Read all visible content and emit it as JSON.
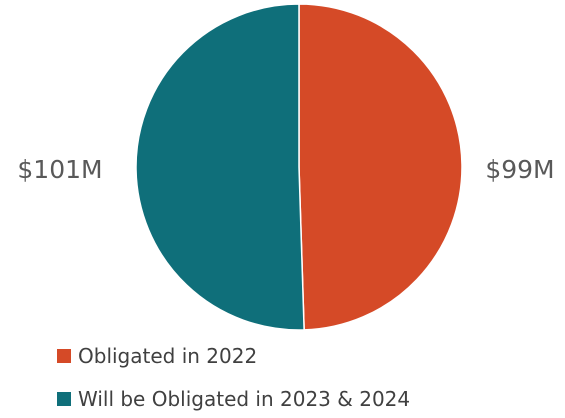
{
  "chart_data": {
    "type": "pie",
    "title": "",
    "slices": [
      {
        "label": "Obligated in 2022",
        "value": 99,
        "value_label": "$99M",
        "color": "#D54A27"
      },
      {
        "label": "Will be Obligated in 2023 & 2024",
        "value": 101,
        "value_label": "$101M",
        "color": "#0F6F7A"
      }
    ],
    "units": "$M",
    "legend": "bottom",
    "start_angle": "12 o'clock, clockwise"
  }
}
